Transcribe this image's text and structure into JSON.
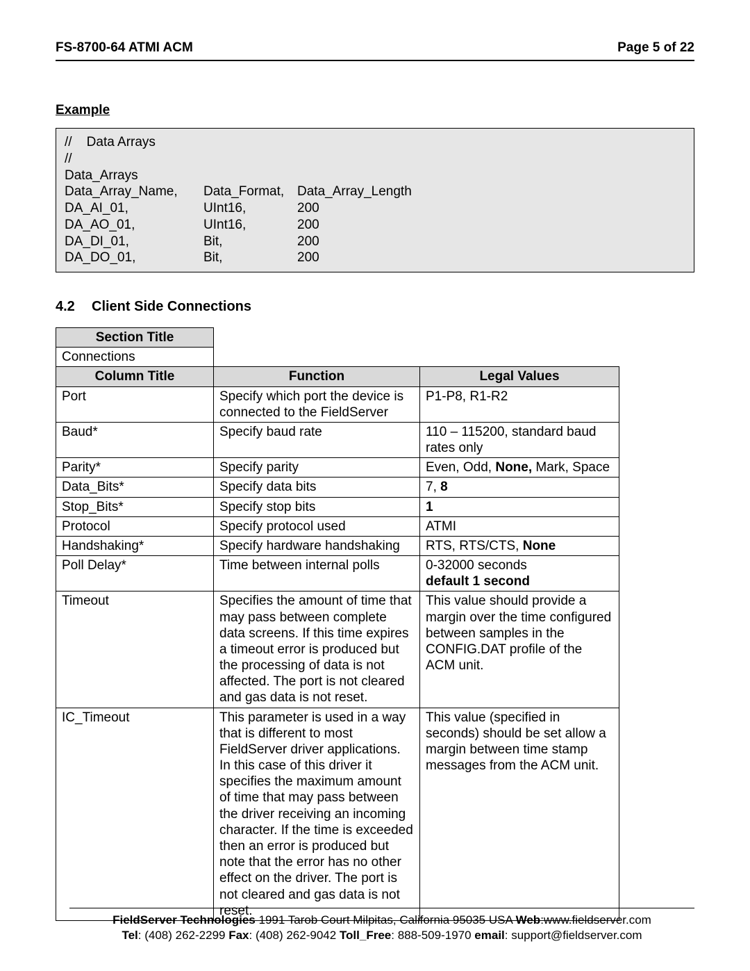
{
  "header": {
    "left": "FS-8700-64 ATMI ACM",
    "right": "Page 5 of 22"
  },
  "example": {
    "heading": "Example",
    "lines": [
      "//    Data Arrays",
      "//",
      "Data_Arrays"
    ],
    "rows": [
      {
        "c1": "Data_Array_Name,",
        "c2": "Data_Format,",
        "c3": "Data_Array_Length"
      },
      {
        "c1": "DA_AI_01,",
        "c2": "UInt16,",
        "c3": "200"
      },
      {
        "c1": "DA_AO_01,",
        "c2": "UInt16,",
        "c3": "200"
      },
      {
        "c1": "DA_DI_01,",
        "c2": "Bit,",
        "c3": "200"
      },
      {
        "c1": "DA_DO_01,",
        "c2": "Bit,",
        "c3": "200"
      }
    ]
  },
  "section": {
    "number": "4.2",
    "title": "Client Side Connections"
  },
  "specTable": {
    "sectionTitleHeader": "Section Title",
    "sectionTitleValue": "Connections",
    "headers": {
      "col": "Column Title",
      "func": "Function",
      "legal": "Legal Values"
    },
    "rows": [
      {
        "title": "Port",
        "func": "Specify which port the device is connected to the FieldServer",
        "legal": "P1-P8, R1-R2"
      },
      {
        "title": "Baud*",
        "func": "Specify baud rate",
        "legal": "110 – 115200, standard baud rates only"
      },
      {
        "title": "Parity*",
        "func": "Specify parity",
        "legal_html": "Even, Odd, <b>None,</b> Mark, Space"
      },
      {
        "title": "Data_Bits*",
        "func": "Specify data bits",
        "legal_html": "7, <b>8</b>"
      },
      {
        "title": "Stop_Bits*",
        "func": "Specify stop bits",
        "legal_html": "<b>1</b>"
      },
      {
        "title": "Protocol",
        "func": "Specify protocol used",
        "legal": "ATMI"
      },
      {
        "title": "Handshaking*",
        "func": "Specify hardware handshaking",
        "legal_html": "RTS, RTS/CTS, <b>None</b>"
      },
      {
        "title": "Poll Delay*",
        "func": "Time between internal polls",
        "legal_html": "0-32000 seconds<br><b>default 1 second</b>"
      },
      {
        "title": "Timeout",
        "func": "Specifies the amount of time that may pass between complete data screens. If this time expires a timeout error is produced but the processing of data is not affected. The port is not cleared and gas data is not reset.",
        "legal": "This value should provide a margin over the time configured between samples in the CONFIG.DAT profile of the ACM unit."
      },
      {
        "title": "IC_Timeout",
        "func": "This parameter is used in a way that is different to most FieldServer driver applications. In this case of this driver it specifies the maximum amount of time that may pass between the driver receiving an incoming character. If the time is exceeded then an error is produced but note that the error has no other effect on the driver. The port is not cleared and gas data is not reset.",
        "legal": "This value (specified in seconds) should be set allow a margin between time stamp messages from the ACM unit."
      }
    ]
  },
  "footer": {
    "line1_html": "<b>FieldServer Technologies</b> 1991 Tarob Court Milpitas, California 95035 USA  <b>Web</b>:www.fieldserver.com",
    "line2_html": "<b>Tel</b>: (408) 262-2299   <b>Fax</b>: (408) 262-9042   <b>Toll_Free</b>: 888-509-1970   <b>email</b>: support@fieldserver.com"
  }
}
